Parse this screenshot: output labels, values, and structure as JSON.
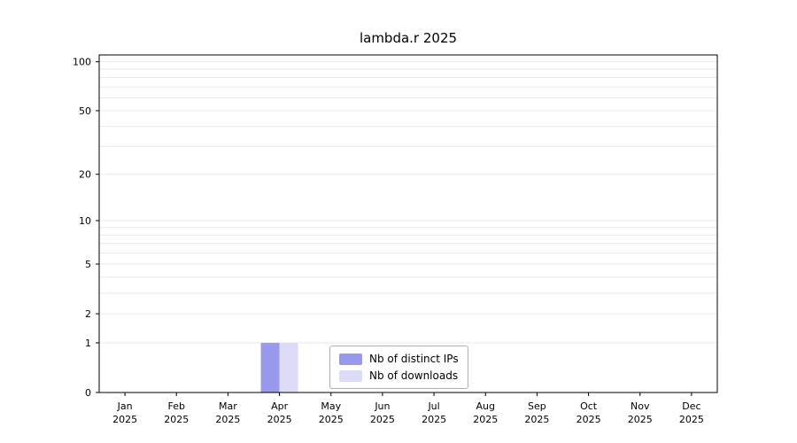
{
  "chart_data": {
    "type": "bar",
    "title": "lambda.r 2025",
    "categories": [
      "Jan",
      "Feb",
      "Mar",
      "Apr",
      "May",
      "Jun",
      "Jul",
      "Aug",
      "Sep",
      "Oct",
      "Nov",
      "Dec"
    ],
    "year": "2025",
    "series": [
      {
        "name": "Nb of distinct IPs",
        "color": "#9999ee",
        "values": [
          0,
          0,
          0,
          1,
          0,
          0,
          0,
          0,
          0,
          0,
          0,
          0
        ]
      },
      {
        "name": "Nb of downloads",
        "color": "#dcdcf9",
        "values": [
          0,
          0,
          0,
          1,
          0,
          0,
          0,
          0,
          0,
          0,
          0,
          0
        ]
      }
    ],
    "yticks": [
      0,
      1,
      2,
      5,
      10,
      20,
      50,
      100
    ],
    "ylim": [
      0,
      110
    ],
    "y_scale": "log10(v+1)",
    "gridline_values": [
      1,
      2,
      3,
      4,
      5,
      6,
      7,
      8,
      9,
      10,
      20,
      30,
      40,
      50,
      60,
      70,
      80,
      90,
      100
    ],
    "grid": "on",
    "legend_position": "lower center",
    "colors": {
      "axis": "#000000",
      "gridline": "#eaeaea",
      "legend_border": "#b0b0b0",
      "text": "#000000"
    }
  }
}
